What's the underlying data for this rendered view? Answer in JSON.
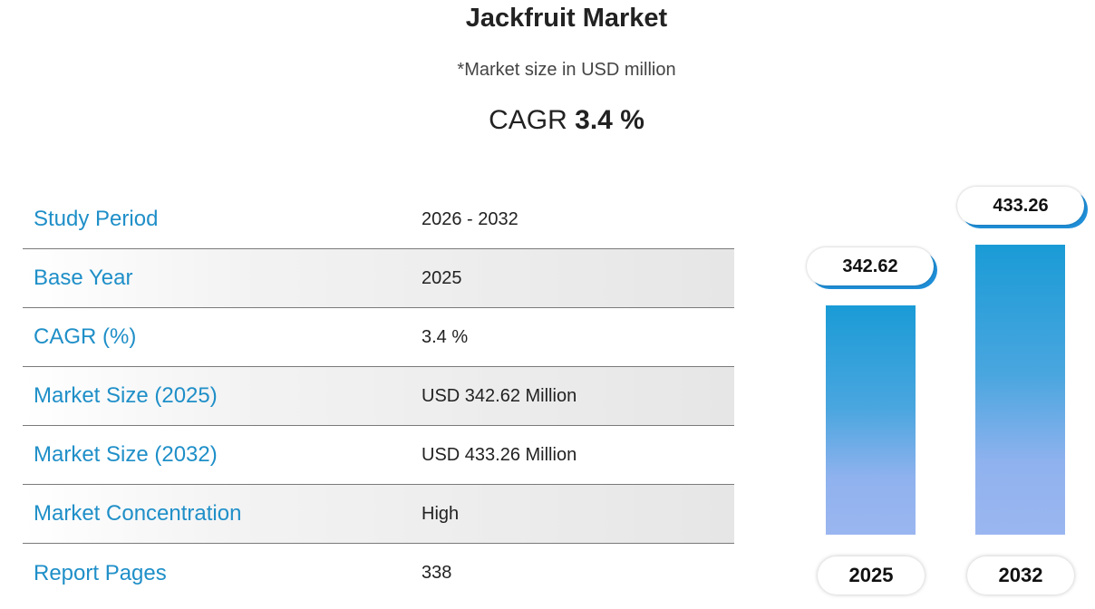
{
  "header": {
    "title": "Jackfruit Market",
    "subtitle": "*Market size in USD million",
    "cagr_prefix": "CAGR",
    "cagr_value": "3.4 %"
  },
  "table": {
    "rows": [
      {
        "label": "Study Period",
        "value": "2026 - 2032"
      },
      {
        "label": "Base Year",
        "value": "2025"
      },
      {
        "label": "CAGR (%)",
        "value": "3.4 %"
      },
      {
        "label": "Market Size (2025)",
        "value": "USD 342.62 Million"
      },
      {
        "label": "Market Size (2032)",
        "value": "USD 433.26 Million"
      },
      {
        "label": "Market Concentration",
        "value": "High"
      },
      {
        "label": "Report Pages",
        "value": "338"
      }
    ]
  },
  "chart_data": {
    "type": "bar",
    "categories": [
      "2025",
      "2032"
    ],
    "values": [
      342.62,
      433.26
    ],
    "value_labels": [
      "342.62",
      "433.26"
    ],
    "grid": false,
    "colors": {
      "bar_top": "#1a9bd6",
      "bar_bottom": "#9bb6f0",
      "label_accent": "#1f8fd8"
    }
  }
}
